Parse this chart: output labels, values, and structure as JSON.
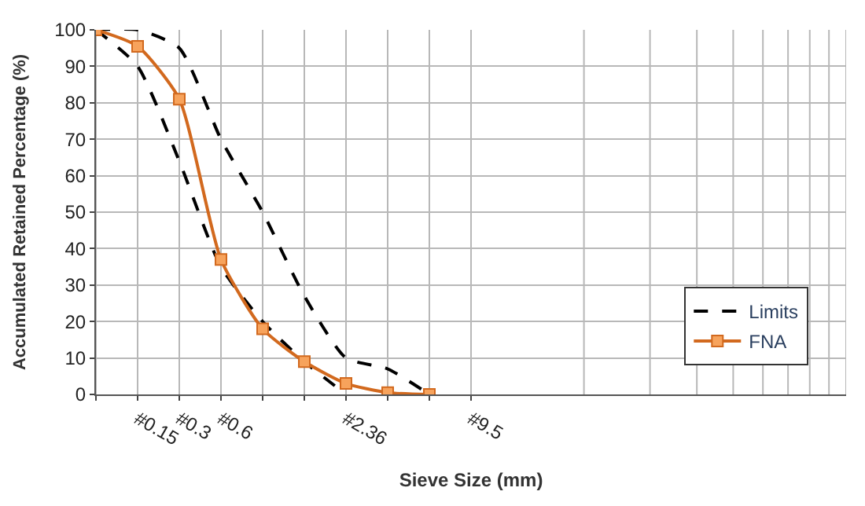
{
  "chart_data": {
    "type": "line",
    "xlabel": "Sieve Size (mm)",
    "ylabel": "Accumulated Retained Percentage (%)",
    "categories": [
      null,
      "#0.15",
      "#0.3",
      "#0.6",
      null,
      null,
      "#2.36",
      null,
      null,
      "#9.5"
    ],
    "ylim": [
      0,
      100
    ],
    "yticks": [
      0,
      10,
      20,
      30,
      40,
      50,
      60,
      70,
      80,
      90,
      100
    ],
    "grid": true,
    "legend": "bottom right",
    "series": [
      {
        "name": "Limits",
        "color": "#000000",
        "line_style": "dashed",
        "marker": "none",
        "values": [
          100,
          90,
          64,
          35,
          20,
          9,
          0,
          null,
          null,
          null
        ]
      },
      {
        "color": "#000000",
        "line_style": "dashed",
        "marker": "none",
        "values": [
          100,
          100,
          95,
          70,
          50,
          27,
          10,
          7,
          0,
          null
        ]
      },
      {
        "name": "FNA",
        "color": "#d2691e",
        "line_style": "solid",
        "marker": "square",
        "values": [
          100,
          95.5,
          81,
          37,
          18,
          9,
          3,
          0.5,
          0,
          null
        ]
      }
    ]
  }
}
